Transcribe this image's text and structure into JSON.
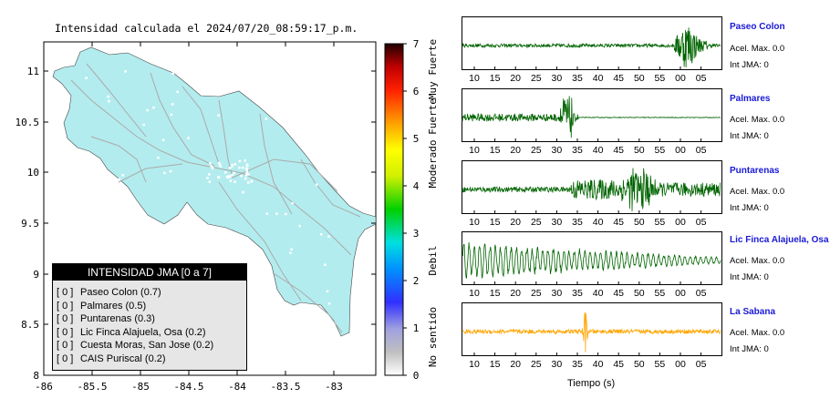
{
  "map": {
    "title": "Intensidad calculada el 2024/07/20_08:59:17_p.m.",
    "lon_ticks": [
      "-86",
      "-85.5",
      "-85",
      "-84.5",
      "-84",
      "-83.5",
      "-83"
    ],
    "lat_ticks": [
      "11",
      "10.5",
      "10",
      "9.5",
      "9",
      "8.5",
      "8"
    ],
    "land_color": "#b3ecee",
    "road_color": "#aaaaaa"
  },
  "colorbar": {
    "ticks": [
      "0",
      "1",
      "2",
      "3",
      "4",
      "5",
      "6",
      "7"
    ],
    "labels": [
      "No sentido",
      "Debil",
      "Moderado",
      "Fuerte",
      "Muy Fuerte"
    ]
  },
  "legend": {
    "title": "INTENSIDAD JMA [0 a 7]",
    "items": [
      {
        "level": "[ 0 ]",
        "name": "Paseo Colon (0.7)"
      },
      {
        "level": "[ 0 ]",
        "name": "Palmares (0.5)"
      },
      {
        "level": "[ 0 ]",
        "name": "Puntarenas (0.3)"
      },
      {
        "level": "[ 0 ]",
        "name": "Lic Finca Alajuela, Osa (0.2)"
      },
      {
        "level": "[ 0 ]",
        "name": "Cuesta Moras, San Jose (0.2)"
      },
      {
        "level": "[ 0 ]",
        "name": "CAIS Puriscal (0.2)"
      }
    ]
  },
  "waveforms": {
    "time_ticks": [
      "10",
      "15",
      "20",
      "25",
      "30",
      "35",
      "40",
      "45",
      "50",
      "55",
      "00",
      "05"
    ],
    "xlabel": "Tiempo (s)",
    "stations": [
      {
        "name": "Paseo Colon",
        "acel": "Acel. Max. 0.0",
        "int": "Int JMA: 0",
        "color": "#006400"
      },
      {
        "name": "Palmares",
        "acel": "Acel. Max. 0.0",
        "int": "Int JMA: 0",
        "color": "#006400"
      },
      {
        "name": "Puntarenas",
        "acel": "Acel. Max. 0.0",
        "int": "Int JMA: 0",
        "color": "#006400"
      },
      {
        "name": "Lic Finca Alajuela, Osa",
        "acel": "Acel. Max. 0.0",
        "int": "Int JMA: 0",
        "color": "#006400"
      },
      {
        "name": "La Sabana",
        "acel": "Acel. Max. 0.0",
        "int": "Int JMA: 0",
        "color": "#ffa500"
      }
    ]
  }
}
